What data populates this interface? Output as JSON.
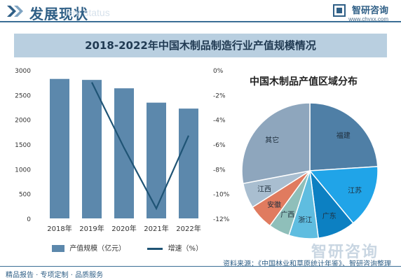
{
  "header": {
    "title": "发展现状",
    "ghost_text": "ent status",
    "brand_name": "智研咨询",
    "brand_url": "www.chyxx.com"
  },
  "main_title": "2018-2022年中国木制品制造行业产值规模情况",
  "chart_data": [
    {
      "type": "bar",
      "categories": [
        "2018年",
        "2019年",
        "2020年",
        "2021年",
        "2022年"
      ],
      "series": [
        {
          "name": "产值规模（亿元）",
          "type": "bar",
          "axis": "left",
          "color": "#5c88ac",
          "values": [
            2820,
            2800,
            2630,
            2340,
            2220
          ]
        },
        {
          "name": "增速（%）",
          "type": "line",
          "axis": "right",
          "color": "#1f5475",
          "values": [
            null,
            -1.0,
            -6.3,
            -11.2,
            -5.3
          ]
        }
      ],
      "y_left": {
        "min": 0,
        "max": 3000,
        "ticks": [
          "0",
          "500",
          "1000",
          "1500",
          "2000",
          "2500",
          "3000"
        ]
      },
      "y_right": {
        "min": -12,
        "max": 0,
        "ticks": [
          "0%",
          "-2%",
          "-4%",
          "-6%",
          "-8%",
          "-10%",
          "-12%"
        ]
      },
      "grid": false,
      "legend": "bottom"
    },
    {
      "type": "pie",
      "title": "中国木制品产值区域分布",
      "slices": [
        {
          "label": "福建",
          "value": 24,
          "color": "#4f7fa6"
        },
        {
          "label": "江苏",
          "value": 15,
          "color": "#20a4e8"
        },
        {
          "label": "广东",
          "value": 9,
          "color": "#0c80c2"
        },
        {
          "label": "浙江",
          "value": 7,
          "color": "#5fbde0"
        },
        {
          "label": "广西",
          "value": 5,
          "color": "#8fbfba"
        },
        {
          "label": "安徽",
          "value": 6,
          "color": "#e07b5f"
        },
        {
          "label": "江西",
          "value": 6,
          "color": "#a9bed0"
        },
        {
          "label": "其它",
          "value": 28,
          "color": "#8ea6bd"
        }
      ]
    }
  ],
  "legend": {
    "bar_label": "产值规模（亿元）",
    "line_label": "增速（%）"
  },
  "footer": {
    "left": "精品报告 · 专项定制 · 品质服务",
    "source": "资料来源：《中国林业和草原统计年鉴》、智研咨询整理",
    "watermark": "智研咨询"
  }
}
